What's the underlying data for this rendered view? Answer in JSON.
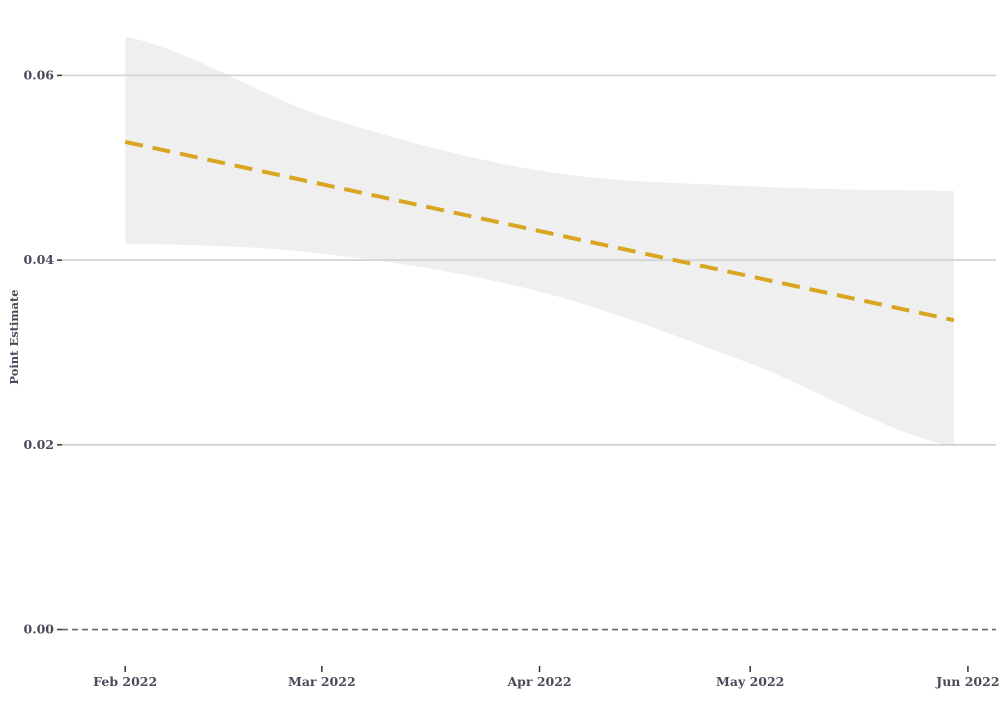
{
  "chart_data": {
    "type": "line",
    "title": "",
    "xlabel": "",
    "ylabel": "Point Estimate",
    "x_ticks": [
      "2022-02-01",
      "2022-03-01",
      "2022-04-01",
      "2022-05-01",
      "2022-06-01"
    ],
    "x_tick_labels": [
      "Feb 2022",
      "Mar 2022",
      "Apr 2022",
      "May 2022",
      "Jun 2022"
    ],
    "y_ticks": [
      0,
      0.02,
      0.04,
      0.06
    ],
    "y_tick_labels": [
      "0.00",
      "0.02",
      "0.04",
      "0.06"
    ],
    "ylim": [
      -0.002,
      0.066
    ],
    "xlim": [
      "2022-01-23",
      "2022-06-05"
    ],
    "grid": "horizontal",
    "reference_line": {
      "y": 0,
      "style": "dashed",
      "color": "#666666"
    },
    "series": [
      {
        "style": "dashed",
        "color": "#DAA520",
        "x": [
          "2022-02-01",
          "2022-05-30"
        ],
        "y": [
          0.0528,
          0.0335
        ]
      }
    ],
    "band": {
      "color": "#efefef",
      "x": [
        "2022-02-01",
        "2022-03-01",
        "2022-04-01",
        "2022-05-01",
        "2022-05-30"
      ],
      "lower": [
        0.0418,
        0.0407,
        0.0366,
        0.0288,
        0.0198
      ],
      "upper": [
        0.0642,
        0.0556,
        0.0497,
        0.048,
        0.0475
      ]
    }
  }
}
